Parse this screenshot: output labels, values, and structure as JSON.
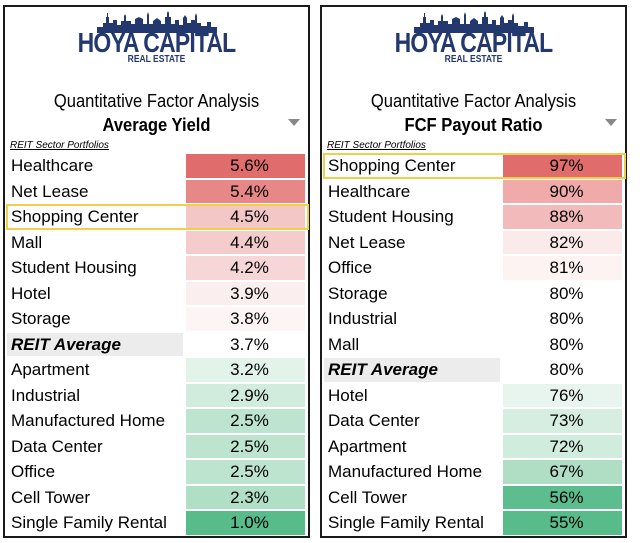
{
  "colors": {
    "brand": "#23386f",
    "highlight": "#f2cf4a",
    "avg_row_bg": "#ececec",
    "high_red": "#e06666",
    "low_green": "#57bb8a"
  },
  "panels": [
    {
      "brand_line1": "HOYA CAPITAL",
      "brand_line2": "REAL ESTATE",
      "subtitle": "Quantitative Factor Analysis",
      "metric": "Average Yield",
      "section_label": "REIT Sector Portfolios",
      "highlight_index": 2,
      "rows": [
        {
          "label": "Healthcare",
          "value": "5.6%",
          "color": "#e06c6c",
          "avg": false
        },
        {
          "label": "Net Lease",
          "value": "5.4%",
          "color": "#e88787",
          "avg": false
        },
        {
          "label": "Shopping Center",
          "value": "4.5%",
          "color": "#f4c7c7",
          "avg": false
        },
        {
          "label": "Mall",
          "value": "4.4%",
          "color": "#f5cccc",
          "avg": false
        },
        {
          "label": "Student Housing",
          "value": "4.2%",
          "color": "#f6d6d6",
          "avg": false
        },
        {
          "label": "Hotel",
          "value": "3.9%",
          "color": "#fbeeee",
          "avg": false
        },
        {
          "label": "Storage",
          "value": "3.8%",
          "color": "#fdf5f5",
          "avg": false
        },
        {
          "label": "REIT Average",
          "value": "3.7%",
          "color": "#ffffff",
          "avg": true
        },
        {
          "label": "Apartment",
          "value": "3.2%",
          "color": "#e2f3ea",
          "avg": false
        },
        {
          "label": "Industrial",
          "value": "2.9%",
          "color": "#d1ecdd",
          "avg": false
        },
        {
          "label": "Manufactured Home",
          "value": "2.5%",
          "color": "#bde4cf",
          "avg": false
        },
        {
          "label": "Data Center",
          "value": "2.5%",
          "color": "#bde4cf",
          "avg": false
        },
        {
          "label": "Office",
          "value": "2.5%",
          "color": "#bde4cf",
          "avg": false
        },
        {
          "label": "Cell Tower",
          "value": "2.3%",
          "color": "#b1dfc6",
          "avg": false
        },
        {
          "label": "Single Family Rental",
          "value": "1.0%",
          "color": "#57bb8a",
          "avg": false
        }
      ]
    },
    {
      "brand_line1": "HOYA CAPITAL",
      "brand_line2": "REAL ESTATE",
      "subtitle": "Quantitative Factor Analysis",
      "metric": "FCF Payout Ratio",
      "section_label": "REIT Sector Portfolios",
      "highlight_index": 0,
      "rows": [
        {
          "label": "Shopping Center",
          "value": "97%",
          "color": "#e06c6c",
          "avg": false
        },
        {
          "label": "Healthcare",
          "value": "90%",
          "color": "#f0aaaa",
          "avg": false
        },
        {
          "label": "Student Housing",
          "value": "88%",
          "color": "#f2baba",
          "avg": false
        },
        {
          "label": "Net Lease",
          "value": "82%",
          "color": "#fbeaea",
          "avg": false
        },
        {
          "label": "Office",
          "value": "81%",
          "color": "#fdf3f3",
          "avg": false
        },
        {
          "label": "Storage",
          "value": "80%",
          "color": "#ffffff",
          "avg": false
        },
        {
          "label": "Industrial",
          "value": "80%",
          "color": "#ffffff",
          "avg": false
        },
        {
          "label": "Mall",
          "value": "80%",
          "color": "#ffffff",
          "avg": false
        },
        {
          "label": "REIT Average",
          "value": "80%",
          "color": "#ffffff",
          "avg": true
        },
        {
          "label": "Hotel",
          "value": "76%",
          "color": "#e8f5ee",
          "avg": false
        },
        {
          "label": "Data Center",
          "value": "73%",
          "color": "#d6eee1",
          "avg": false
        },
        {
          "label": "Apartment",
          "value": "72%",
          "color": "#d0ecdc",
          "avg": false
        },
        {
          "label": "Manufactured Home",
          "value": "67%",
          "color": "#b0dec5",
          "avg": false
        },
        {
          "label": "Cell Tower",
          "value": "56%",
          "color": "#5cbd8e",
          "avg": false
        },
        {
          "label": "Single Family Rental",
          "value": "55%",
          "color": "#57bb8a",
          "avg": false
        }
      ]
    }
  ],
  "chart_data": [
    {
      "type": "table",
      "title": "Average Yield",
      "categories": [
        "Healthcare",
        "Net Lease",
        "Shopping Center",
        "Mall",
        "Student Housing",
        "Hotel",
        "Storage",
        "REIT Average",
        "Apartment",
        "Industrial",
        "Manufactured Home",
        "Data Center",
        "Office",
        "Cell Tower",
        "Single Family Rental"
      ],
      "values": [
        5.6,
        5.4,
        4.5,
        4.4,
        4.2,
        3.9,
        3.8,
        3.7,
        3.2,
        2.9,
        2.5,
        2.5,
        2.5,
        2.3,
        1.0
      ]
    },
    {
      "type": "table",
      "title": "FCF Payout Ratio",
      "categories": [
        "Shopping Center",
        "Healthcare",
        "Student Housing",
        "Net Lease",
        "Office",
        "Storage",
        "Industrial",
        "Mall",
        "REIT Average",
        "Hotel",
        "Data Center",
        "Apartment",
        "Manufactured Home",
        "Cell Tower",
        "Single Family Rental"
      ],
      "values": [
        97,
        90,
        88,
        82,
        81,
        80,
        80,
        80,
        80,
        76,
        73,
        72,
        67,
        56,
        55
      ]
    }
  ]
}
